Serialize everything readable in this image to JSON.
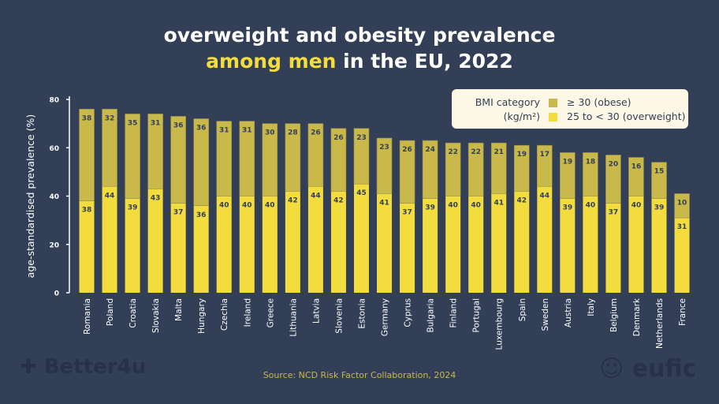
{
  "title": {
    "line1": "overweight and obesity prevalence",
    "line2_highlight": "among men",
    "line2_rest": " in the EU, 2022"
  },
  "colors": {
    "background": "#323f57",
    "obese": "#c9b84a",
    "overweight": "#f3dc3d",
    "highlight": "#f3dc3d"
  },
  "legend": {
    "title_line1": "BMI category",
    "title_line2": "(kg/m²)",
    "obese": "≥ 30 (obese)",
    "overweight": "25 to < 30 (overweight)"
  },
  "source": "Source: NCD Risk Factor Collaboration, 2024",
  "logos": {
    "left": "Better4u",
    "right": "eufic"
  },
  "chart_data": {
    "type": "bar",
    "stacked": true,
    "ylabel": "age-standardised prevalence (%)",
    "ylim": [
      0,
      80
    ],
    "yticks": [
      0,
      20,
      40,
      60,
      80
    ],
    "grid": false,
    "legend_position": "top-right",
    "categories": [
      "Romania",
      "Poland",
      "Croatia",
      "Slovakia",
      "Malta",
      "Hungary",
      "Czechia",
      "Ireland",
      "Greece",
      "Lithuania",
      "Latvia",
      "Slovenia",
      "Estonia",
      "Germany",
      "Cyprus",
      "Bulgaria",
      "Finland",
      "Portugal",
      "Luxembourg",
      "Spain",
      "Sweden",
      "Austria",
      "Italy",
      "Belgium",
      "Denmark",
      "Netherlands",
      "France"
    ],
    "series": [
      {
        "name": "25 to < 30 (overweight)",
        "values": [
          38,
          44,
          39,
          43,
          37,
          36,
          40,
          40,
          40,
          42,
          44,
          42,
          45,
          41,
          37,
          39,
          40,
          40,
          41,
          42,
          44,
          39,
          40,
          37,
          40,
          39,
          31
        ]
      },
      {
        "name": "≥ 30 (obese)",
        "values": [
          38,
          32,
          35,
          31,
          36,
          36,
          31,
          31,
          30,
          28,
          26,
          26,
          23,
          23,
          26,
          24,
          22,
          22,
          21,
          19,
          17,
          19,
          18,
          20,
          16,
          15,
          10
        ]
      }
    ]
  }
}
